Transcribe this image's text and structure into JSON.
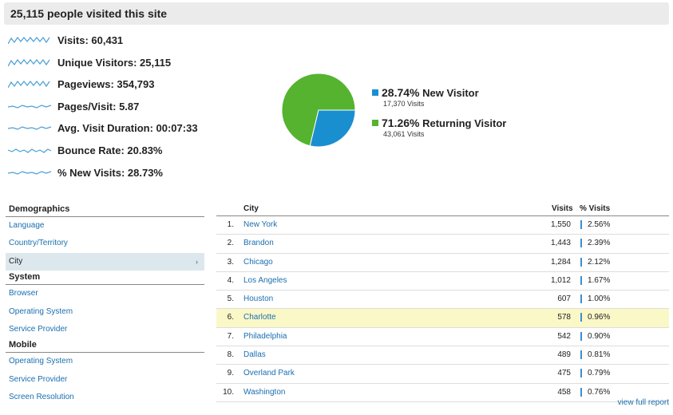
{
  "header": {
    "title": "25,115 people visited this site"
  },
  "metrics": [
    {
      "label": "Visits: 60,431"
    },
    {
      "label": "Unique Visitors: 25,115"
    },
    {
      "label": "Pageviews: 354,793"
    },
    {
      "label": "Pages/Visit: 5.87"
    },
    {
      "label": "Avg. Visit Duration: 00:07:33"
    },
    {
      "label": "Bounce Rate: 20.83%"
    },
    {
      "label": "% New Visits: 28.73%"
    }
  ],
  "colors": {
    "new_visitor": "#1a8fd0",
    "returning_visitor": "#55b330",
    "link": "#1a6fb0",
    "sparkline": "#4a9fd6",
    "highlight": "#fbf8c8"
  },
  "pie": {
    "new_fraction": 0.2874,
    "new": {
      "pct": "28.74%",
      "label": "New Visitor",
      "sub": "17,370 Visits"
    },
    "returning": {
      "pct": "71.26%",
      "label": "Returning Visitor",
      "sub": "43,061 Visits"
    }
  },
  "sidebar": {
    "demographics": {
      "title": "Demographics",
      "items": [
        "Language",
        "Country/Territory",
        "City"
      ]
    },
    "system": {
      "title": "System",
      "items": [
        "Browser",
        "Operating System",
        "Service Provider"
      ]
    },
    "mobile": {
      "title": "Mobile",
      "items": [
        "Operating System",
        "Service Provider",
        "Screen Resolution"
      ]
    },
    "active_arrow": "›"
  },
  "table": {
    "headers": {
      "city": "City",
      "visits": "Visits",
      "pct": "% Visits"
    },
    "rows": [
      {
        "num": "1.",
        "city": "New York",
        "visits": "1,550",
        "pct": "2.56%"
      },
      {
        "num": "2.",
        "city": "Brandon",
        "visits": "1,443",
        "pct": "2.39%"
      },
      {
        "num": "3.",
        "city": "Chicago",
        "visits": "1,284",
        "pct": "2.12%"
      },
      {
        "num": "4.",
        "city": "Los Angeles",
        "visits": "1,012",
        "pct": "1.67%"
      },
      {
        "num": "5.",
        "city": "Houston",
        "visits": "607",
        "pct": "1.00%"
      },
      {
        "num": "6.",
        "city": "Charlotte",
        "visits": "578",
        "pct": "0.96%"
      },
      {
        "num": "7.",
        "city": "Philadelphia",
        "visits": "542",
        "pct": "0.90%"
      },
      {
        "num": "8.",
        "city": "Dallas",
        "visits": "489",
        "pct": "0.81%"
      },
      {
        "num": "9.",
        "city": "Overland Park",
        "visits": "475",
        "pct": "0.79%"
      },
      {
        "num": "10.",
        "city": "Washington",
        "visits": "458",
        "pct": "0.76%"
      }
    ],
    "full_report": "view full report"
  }
}
